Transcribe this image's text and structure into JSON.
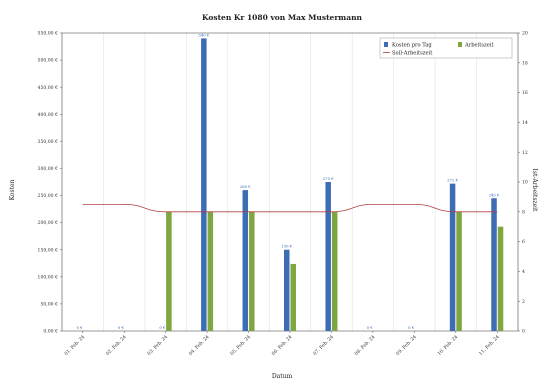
{
  "chart_data": {
    "type": "bar",
    "title": "Kosten Kr 1080 von Max Mustermann",
    "xlabel": "Datum",
    "ylabel": "Kosten",
    "y2label": "Ist-Arbeitszeit",
    "categories": [
      "01. Feb. 24",
      "02. Feb. 24",
      "03. Feb. 24",
      "04. Feb. 24",
      "05. Feb. 24",
      "06. Feb. 24",
      "07. Feb. 24",
      "08. Feb. 24",
      "09. Feb. 24",
      "10. Feb. 24",
      "11. Feb. 24"
    ],
    "ylim": [
      0,
      550
    ],
    "y_ticks": [
      "0,00 €",
      "50,00 €",
      "100,00 €",
      "150,00 €",
      "200,00 €",
      "250,00 €",
      "300,00 €",
      "350,00 €",
      "400,00 €",
      "450,00 €",
      "500,00 €",
      "550,00 €"
    ],
    "y2lim": [
      0,
      20
    ],
    "y2_ticks": [
      "0",
      "2",
      "4",
      "6",
      "8",
      "10",
      "12",
      "14",
      "16",
      "18",
      "20"
    ],
    "series": [
      {
        "name": "Kosten pro Tag",
        "axis": "left",
        "kind": "bar",
        "color": "#3d6eb5",
        "values": [
          0,
          0,
          0,
          540,
          260,
          150,
          275,
          0,
          0,
          272,
          245
        ],
        "labels": [
          "0 €",
          "0 €",
          "0 €",
          "540 €",
          "260 €",
          "150 €",
          "275 €",
          "0 €",
          "0 €",
          "272 €",
          "245 €"
        ]
      },
      {
        "name": "Arbeitszeit",
        "axis": "right",
        "kind": "bar",
        "color": "#7fa63f",
        "values": [
          0,
          0,
          8,
          8,
          8,
          4.5,
          8,
          0,
          0,
          8,
          7
        ]
      },
      {
        "name": "Soll-Arbeitszeit",
        "axis": "right",
        "kind": "line",
        "color": "#b04040",
        "values": [
          8.5,
          8.5,
          8,
          8,
          8,
          8,
          8,
          8.5,
          8.5,
          8,
          8
        ]
      }
    ],
    "legend": "top-right",
    "grid": "vertical"
  }
}
